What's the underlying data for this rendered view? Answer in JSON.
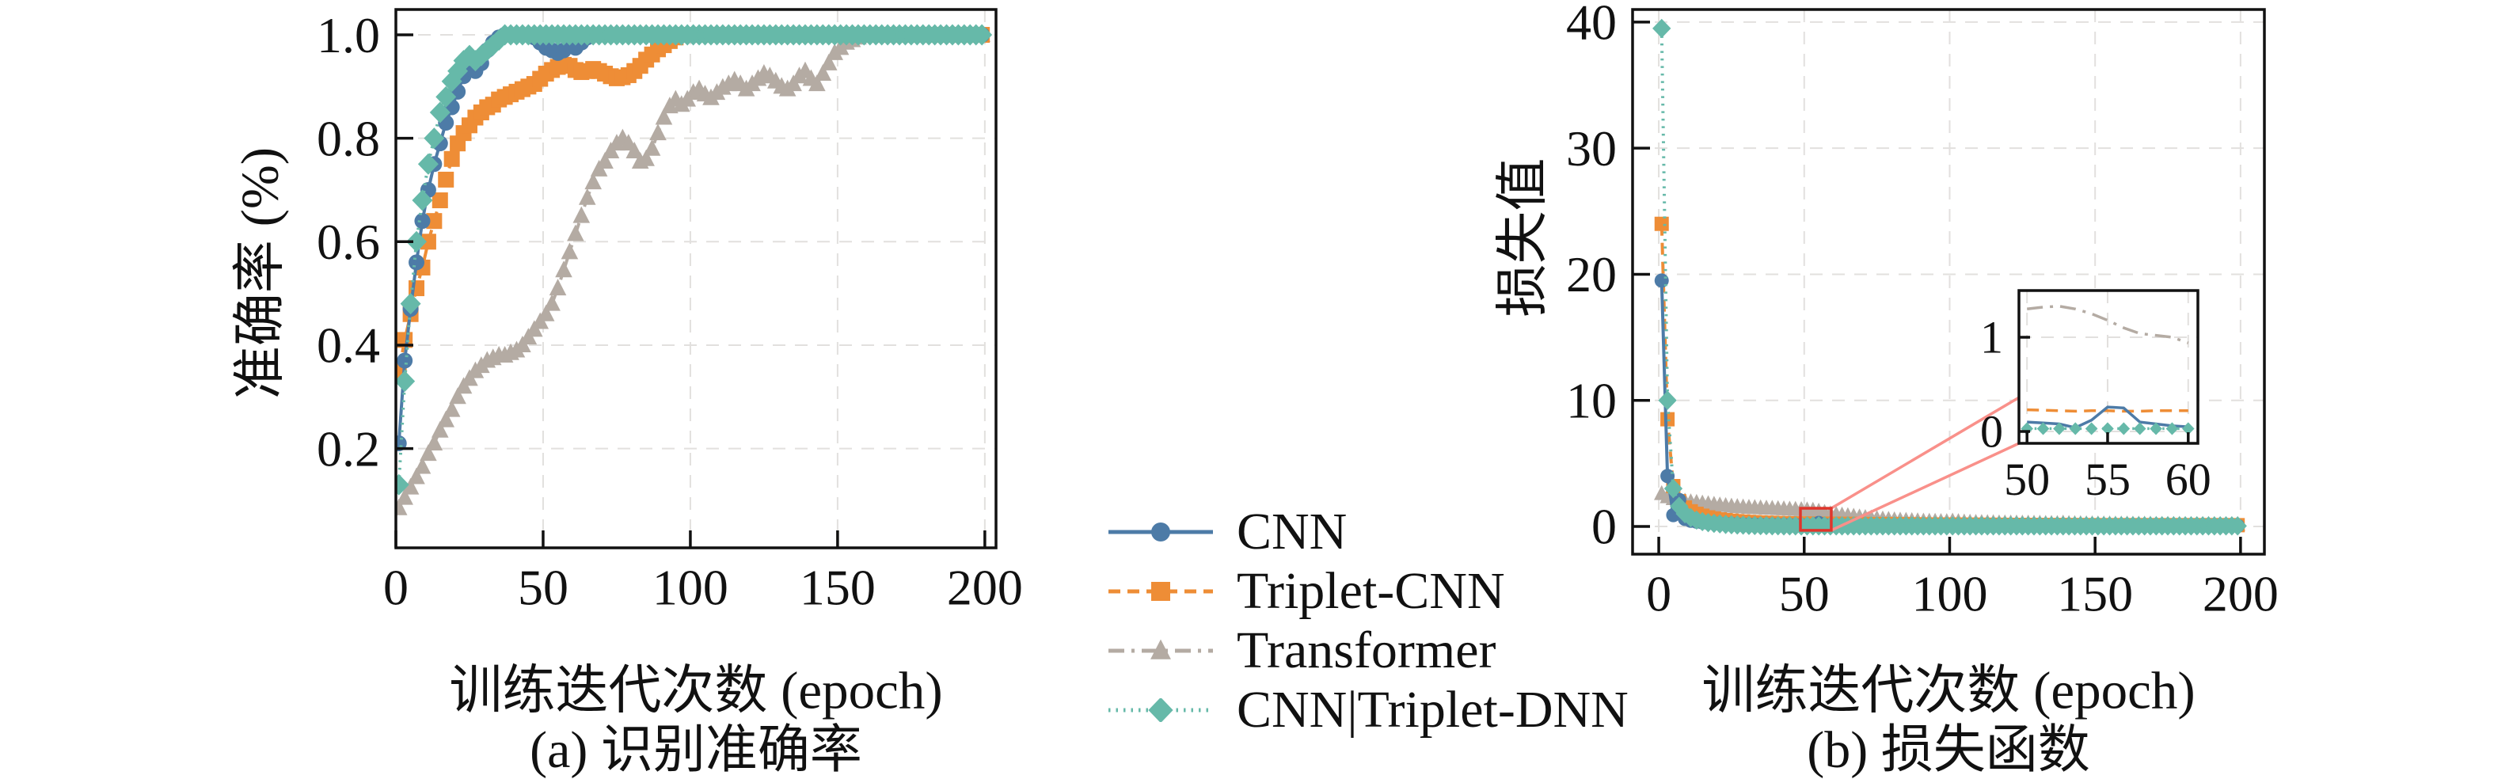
{
  "colors": {
    "cnn": "#4d7ba7",
    "triplet_cnn": "#ee8d36",
    "transformer": "#b4aba3",
    "cnn_triplet_dnn": "#66b9a9",
    "zoom_box": "#e0352b",
    "zoom_connector": "#f9908a",
    "grid": "#e2e0de",
    "axis": "#111111"
  },
  "legend": {
    "items": [
      {
        "id": "cnn",
        "label": "CNN"
      },
      {
        "id": "triplet_cnn",
        "label": "Triplet-CNN"
      },
      {
        "id": "transformer",
        "label": "Transformer"
      },
      {
        "id": "cnn_triplet_dnn",
        "label": "CNN|Triplet-DNN"
      }
    ]
  },
  "subplot_a": {
    "ylabel": "准确率 (%)",
    "xlabel": "训练迭代次数 (epoch)",
    "caption": "(a) 识别准确率"
  },
  "subplot_b": {
    "ylabel": "损失值",
    "xlabel": "训练迭代次数 (epoch)",
    "caption": "(b) 损失函数"
  },
  "chart_data": [
    {
      "id": "accuracy",
      "type": "line",
      "title": "(a) 识别准确率",
      "xlabel": "训练迭代次数 (epoch)",
      "ylabel": "准确率 (%)",
      "xlim": [
        0,
        203.8
      ],
      "ylim": [
        0.008,
        1.049
      ],
      "xticks": [
        0,
        50,
        100,
        150,
        200
      ],
      "xtick_labels": [
        "0",
        "50",
        "100",
        "150",
        "200"
      ],
      "yticks": [
        0.2,
        0.4,
        0.6,
        0.8,
        1.0
      ],
      "ytick_labels": [
        "0.2",
        "0.4",
        "0.6",
        "0.8",
        "1.0"
      ],
      "grid": true,
      "legend_position": "outside-right",
      "series": [
        {
          "id": "transformer",
          "name": "Transformer",
          "marker": "triangle",
          "dash": "dashdot",
          "x0": 1,
          "dx": 2,
          "pad_to": 100,
          "y": [
            0.085,
            0.105,
            0.125,
            0.145,
            0.165,
            0.19,
            0.21,
            0.235,
            0.255,
            0.275,
            0.3,
            0.32,
            0.335,
            0.35,
            0.36,
            0.37,
            0.375,
            0.38,
            0.38,
            0.385,
            0.39,
            0.4,
            0.415,
            0.43,
            0.445,
            0.46,
            0.48,
            0.51,
            0.545,
            0.58,
            0.615,
            0.65,
            0.685,
            0.715,
            0.74,
            0.755,
            0.775,
            0.79,
            0.8,
            0.79,
            0.775,
            0.755,
            0.76,
            0.78,
            0.81,
            0.84,
            0.862,
            0.875,
            0.865,
            0.875,
            0.888,
            0.895,
            0.885,
            0.878,
            0.888,
            0.898,
            0.905,
            0.912,
            0.905,
            0.895,
            0.905,
            0.915,
            0.925,
            0.92,
            0.91,
            0.9,
            0.895,
            0.905,
            0.92,
            0.93,
            0.915,
            0.905,
            0.925,
            0.945,
            0.965,
            0.975,
            0.985,
            0.99,
            0.995,
            1
          ]
        },
        {
          "id": "triplet_cnn",
          "name": "Triplet-CNN",
          "marker": "square",
          "dash": "dashed",
          "x0": 1,
          "dx": 2,
          "pad_to": 100,
          "y": [
            0.35,
            0.41,
            0.46,
            0.51,
            0.55,
            0.6,
            0.64,
            0.68,
            0.72,
            0.76,
            0.79,
            0.81,
            0.825,
            0.84,
            0.85,
            0.86,
            0.865,
            0.875,
            0.88,
            0.885,
            0.89,
            0.895,
            0.9,
            0.905,
            0.915,
            0.925,
            0.932,
            0.938,
            0.942,
            0.94,
            0.932,
            0.928,
            0.93,
            0.934,
            0.93,
            0.925,
            0.92,
            0.916,
            0.918,
            0.922,
            0.93,
            0.94,
            0.952,
            0.962,
            0.972,
            0.98,
            0.988,
            0.995,
            1
          ]
        },
        {
          "id": "cnn",
          "name": "CNN",
          "marker": "circle",
          "dash": "solid",
          "x0": 1,
          "dx": 2,
          "pad_to": 100,
          "y": [
            0.21,
            0.37,
            0.47,
            0.56,
            0.64,
            0.7,
            0.75,
            0.79,
            0.83,
            0.86,
            0.89,
            0.92,
            0.935,
            0.93,
            0.945,
            0.97,
            0.985,
            0.995,
            1,
            1,
            1,
            1,
            1,
            0.995,
            0.985,
            0.975,
            0.97,
            0.965,
            0.97,
            0.98,
            0.975,
            0.985,
            0.995,
            1
          ]
        },
        {
          "id": "cnn_triplet_dnn",
          "name": "CNN|Triplet-DNN",
          "marker": "diamond",
          "dash": "dotted",
          "x0": 1,
          "dx": 2,
          "pad_to": 100,
          "y": [
            0.13,
            0.33,
            0.48,
            0.6,
            0.68,
            0.75,
            0.8,
            0.85,
            0.88,
            0.91,
            0.93,
            0.95,
            0.96,
            0.95,
            0.96,
            0.97,
            0.98,
            0.99,
            1
          ]
        }
      ]
    },
    {
      "id": "loss",
      "type": "line",
      "title": "(b) 损失函数",
      "xlabel": "训练迭代次数 (epoch)",
      "ylabel": "损失值",
      "xlim": [
        -9,
        208.2
      ],
      "ylim": [
        -2.2,
        41.0
      ],
      "xticks": [
        0,
        50,
        100,
        150,
        200
      ],
      "xtick_labels": [
        "0",
        "50",
        "100",
        "150",
        "200"
      ],
      "yticks": [
        0,
        10,
        20,
        30,
        40
      ],
      "ytick_labels": [
        "0",
        "10",
        "20",
        "30",
        "40"
      ],
      "grid": true,
      "zoom_region": {
        "x0": 48.7,
        "x1": 59.3,
        "y0": -0.31,
        "y1": 1.44
      },
      "series": [
        {
          "id": "transformer",
          "name": "Transformer",
          "marker": "triangle",
          "dash": "dashdot",
          "x0": 1,
          "dx": 2,
          "pad_to": 100,
          "y": [
            2.6,
            2.35,
            2.2,
            2.1,
            2,
            1.95,
            1.9,
            1.85,
            1.8,
            1.75,
            1.7,
            1.65,
            1.6,
            1.57,
            1.54,
            1.51,
            1.49,
            1.47,
            1.45,
            1.43,
            1.41,
            1.39,
            1.37,
            1.35,
            1.33,
            1.31,
            1.28,
            1.2,
            1.1,
            1,
            0.95,
            0.9,
            0.85,
            0.8,
            0.75,
            0.7,
            0.66,
            0.62,
            0.58,
            0.55,
            0.52,
            0.5,
            0.48,
            0.46,
            0.44,
            0.42,
            0.41,
            0.4,
            0.39,
            0.38,
            0.42,
            0.38,
            0.35,
            0.33,
            0.32,
            0.31,
            0.3,
            0.29,
            0.28,
            0.28,
            0.27,
            0.27,
            0.26,
            0.26,
            0.25,
            0.25,
            0.24,
            0.24,
            0.23,
            0.26,
            0.23,
            0.22,
            0.22,
            0.21,
            0.21,
            0.2,
            0.2,
            0.2,
            0.19,
            0.19,
            0.19,
            0.18,
            0.18,
            0.18,
            0.18,
            0.17,
            0.17,
            0.17,
            0.17,
            0.17,
            0.16,
            0.16,
            0.16,
            0.16,
            0.16,
            0.16,
            0.15,
            0.15,
            0.15,
            0.15
          ]
        },
        {
          "id": "triplet_cnn",
          "name": "Triplet-CNN",
          "marker": "square",
          "dash": "dashed",
          "x0": 1,
          "dx": 2,
          "pad_to": 100,
          "y": [
            24,
            8.5,
            3.2,
            2,
            1.5,
            1.2,
            1,
            0.85,
            0.72,
            0.63,
            0.56,
            0.5,
            0.46,
            0.42,
            0.39,
            0.36,
            0.34,
            0.32,
            0.3,
            0.29,
            0.27,
            0.26,
            0.25,
            0.24,
            0.235,
            0.23,
            0.225,
            0.22,
            0.22,
            0.215,
            0.21,
            0.205,
            0.2,
            0.2,
            0.195,
            0.19,
            0.19,
            0.185,
            0.18,
            0.18,
            0.175,
            0.17,
            0.17,
            0.165,
            0.16,
            0.16,
            0.155,
            0.15,
            0.15,
            0.15,
            0.145,
            0.145,
            0.14,
            0.14,
            0.135,
            0.135,
            0.13,
            0.13,
            0.13,
            0.125,
            0.125,
            0.12,
            0.12,
            0.12,
            0.115,
            0.115,
            0.115,
            0.11,
            0.11,
            0.11,
            0.11,
            0.105,
            0.105,
            0.105,
            0.1,
            0.1
          ]
        },
        {
          "id": "cnn",
          "name": "CNN",
          "marker": "circle",
          "dash": "solid",
          "x0": 1,
          "dx": 2,
          "pad_to": 100,
          "y": [
            19.5,
            4,
            0.9,
            2.1,
            0.6,
            0.45,
            0.38,
            0.32,
            0.28,
            0.25,
            0.22,
            0.2,
            0.19,
            0.17,
            0.16,
            0.15,
            0.14,
            0.13,
            0.12,
            0.12,
            0.11,
            0.11,
            0.1,
            0.1,
            0.1,
            0.09,
            0.05,
            0.27,
            0.11,
            0.07,
            0.07,
            0.06,
            0.06,
            0.05
          ]
        },
        {
          "id": "cnn_triplet_dnn",
          "name": "CNN|Triplet-DNN",
          "marker": "diamond",
          "dash": "dotted",
          "x0": 1,
          "dx": 2,
          "pad_to": 100,
          "y": [
            39.5,
            10,
            3,
            1.6,
            1,
            0.7,
            0.5,
            0.38,
            0.3,
            0.24,
            0.2,
            0.16,
            0.13,
            0.11,
            0.1,
            0.08,
            0.07,
            0.06,
            0.06,
            0.05,
            0.05,
            0.04
          ]
        }
      ],
      "inset": {
        "xlim": [
          49.5,
          60.6
        ],
        "ylim": [
          -0.126,
          1.496
        ],
        "xticks": [
          50,
          55,
          60
        ],
        "xtick_labels": [
          "50",
          "55",
          "60"
        ],
        "yticks": [
          0,
          1
        ],
        "ytick_labels": [
          "0",
          "1"
        ],
        "series": [
          {
            "id": "transformer",
            "name": "Transformer",
            "marker": "none",
            "dash": "dashdot",
            "x0": 50,
            "dx": 1,
            "y": [
              1.3,
              1.32,
              1.33,
              1.3,
              1.25,
              1.18,
              1.1,
              1.04,
              1.02,
              1.0,
              0.94
            ]
          },
          {
            "id": "triplet_cnn",
            "name": "Triplet-CNN",
            "marker": "none",
            "dash": "dashed",
            "x0": 50,
            "dx": 1,
            "y": [
              0.23,
              0.225,
              0.22,
              0.215,
              0.22,
              0.22,
              0.215,
              0.215,
              0.22,
              0.22,
              0.22
            ]
          },
          {
            "id": "cnn",
            "name": "CNN",
            "marker": "none",
            "dash": "solid",
            "x0": 50,
            "dx": 1,
            "y": [
              0.1,
              0.09,
              0.08,
              0.04,
              0.12,
              0.26,
              0.25,
              0.1,
              0.08,
              0.06,
              0.05
            ]
          },
          {
            "id": "cnn_triplet_dnn",
            "name": "CNN|Triplet-DNN",
            "marker": "diamond",
            "dash": "dotted",
            "x0": 50,
            "dx": 1,
            "y": [
              0.03,
              0.03,
              0.03,
              0.03,
              0.03,
              0.03,
              0.03,
              0.03,
              0.03,
              0.03,
              0.03
            ]
          }
        ]
      }
    }
  ]
}
